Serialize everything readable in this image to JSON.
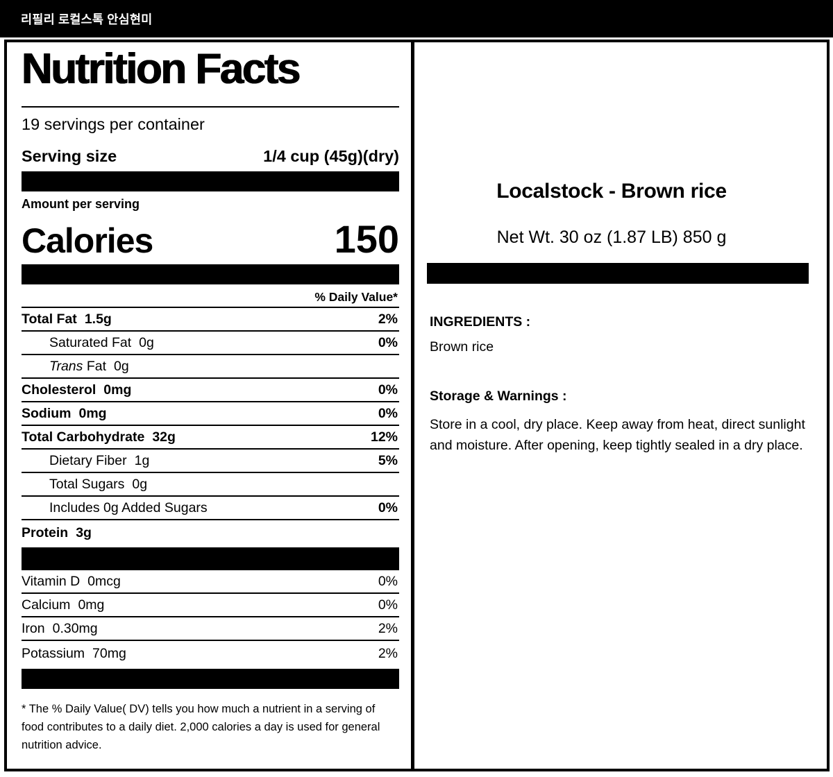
{
  "titlebar": {
    "title": "리필리 로컬스톡 안심현미"
  },
  "nutrition": {
    "title": "Nutrition Facts",
    "servings_per_container": "19  servings per container",
    "serving_size_label": "Serving size",
    "serving_size_value": "1/4 cup  (45g)(dry)",
    "amount_per_serving": "Amount per serving",
    "calories_label": "Calories",
    "calories_value": "150",
    "daily_value_header": "% Daily Value*",
    "rows": [
      {
        "label": "Total Fat",
        "amount": "1.5g",
        "dv": "2%",
        "bold": true,
        "indent": false
      },
      {
        "label": "Saturated Fat",
        "amount": "0g",
        "dv": "0%",
        "bold": false,
        "indent": true
      },
      {
        "italic_prefix": "Trans",
        "label": "Fat",
        "amount": "0g",
        "dv": "",
        "bold": false,
        "indent": true
      },
      {
        "label": "Cholesterol",
        "amount": "0mg",
        "dv": "0%",
        "bold": true,
        "indent": false
      },
      {
        "label": "Sodium",
        "amount": "0mg",
        "dv": "0%",
        "bold": true,
        "indent": false
      },
      {
        "label": "Total Carbohydrate",
        "amount": "32g",
        "dv": "12%",
        "bold": true,
        "indent": false
      },
      {
        "label": "Dietary Fiber",
        "amount": "1g",
        "dv": "5%",
        "bold": false,
        "indent": true
      },
      {
        "label": "Total Sugars",
        "amount": "0g",
        "dv": "",
        "bold": false,
        "indent": true
      },
      {
        "label": "Includes 0g Added Sugars",
        "amount": "",
        "dv": "0%",
        "bold": false,
        "indent": true
      },
      {
        "label": "Protein",
        "amount": "3g",
        "dv": "",
        "bold": true,
        "indent": false
      }
    ],
    "micronutrients": [
      {
        "label": "Vitamin D",
        "amount": "0mcg",
        "dv": "0%",
        "bold": false,
        "indent": false
      },
      {
        "label": "Calcium",
        "amount": "0mg",
        "dv": "0%",
        "bold": false,
        "indent": false
      },
      {
        "label": "Iron",
        "amount": "0.30mg",
        "dv": "2%",
        "bold": false,
        "indent": false
      },
      {
        "label": "Potassium",
        "amount": "70mg",
        "dv": "2%",
        "bold": false,
        "indent": false
      }
    ],
    "footnote": "* The % Daily Value( DV) tells you how much a nutrient in a serving of food contributes to a daily diet. 2,000 calories a day is used for general nutrition advice."
  },
  "product": {
    "name": "Localstock - Brown rice",
    "net_weight": "Net Wt. 30 oz (1.87 LB) 850 g",
    "ingredients_heading": "INGREDIENTS :",
    "ingredients_text": "Brown rice",
    "storage_heading": "Storage & Warnings :",
    "storage_text": "Store in a cool, dry place. Keep away from heat, direct sunlight and moisture. After opening, keep tightly sealed in a dry place."
  },
  "colors": {
    "frame": "#000000",
    "panel_bg": "#ffffff",
    "bar": "#000000",
    "titlebar_bg": "#000000",
    "titlebar_text": "#ffffff"
  }
}
